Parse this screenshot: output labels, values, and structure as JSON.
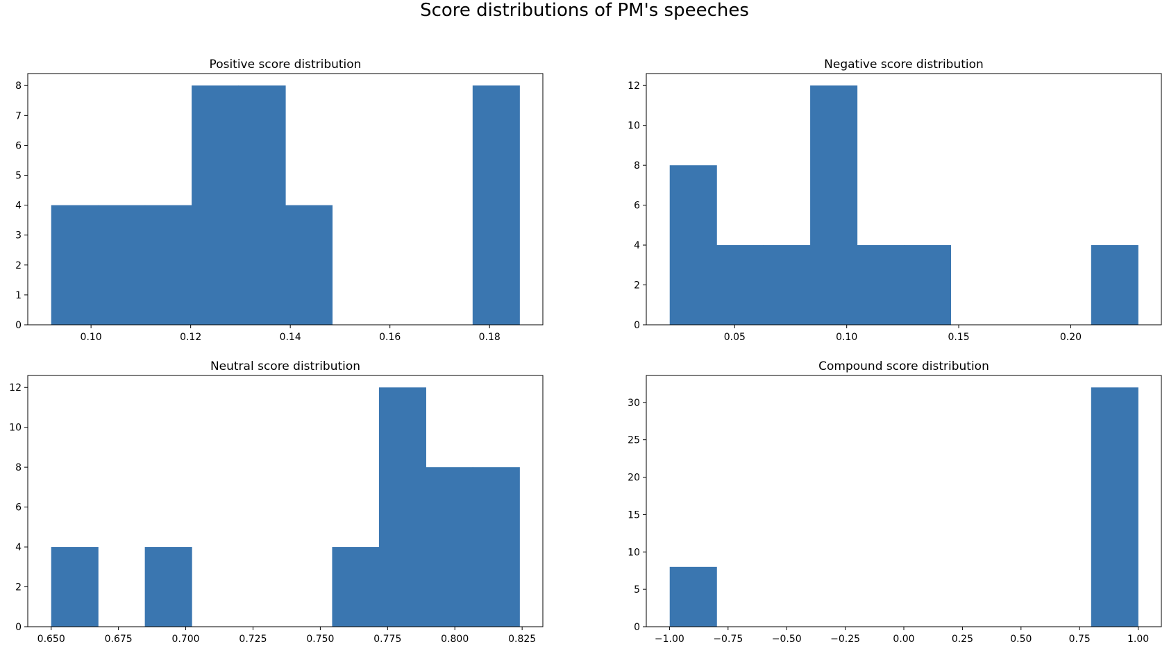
{
  "figure": {
    "suptitle": "Score distributions of PM's speeches"
  },
  "colors": {
    "bar": "#3a76b0",
    "axis": "#000000",
    "background": "#ffffff"
  },
  "chart_data": [
    {
      "type": "bar",
      "title": "Positive score distribution",
      "bins": [
        {
          "x0": 0.092,
          "x1": 0.1014,
          "value": 4
        },
        {
          "x0": 0.1014,
          "x1": 0.1108,
          "value": 4
        },
        {
          "x0": 0.1108,
          "x1": 0.1202,
          "value": 4
        },
        {
          "x0": 0.1202,
          "x1": 0.1296,
          "value": 8
        },
        {
          "x0": 0.1296,
          "x1": 0.139,
          "value": 8
        },
        {
          "x0": 0.139,
          "x1": 0.1484,
          "value": 4
        },
        {
          "x0": 0.1484,
          "x1": 0.1578,
          "value": 0
        },
        {
          "x0": 0.1578,
          "x1": 0.1672,
          "value": 0
        },
        {
          "x0": 0.1672,
          "x1": 0.1766,
          "value": 0
        },
        {
          "x0": 0.1766,
          "x1": 0.186,
          "value": 8
        }
      ],
      "xlim": [
        0.0873,
        0.1907
      ],
      "ylim": [
        0,
        8.4
      ],
      "xticks": [
        0.1,
        0.12,
        0.14,
        0.16,
        0.18
      ],
      "xtick_labels": [
        "0.10",
        "0.12",
        "0.14",
        "0.16",
        "0.18"
      ],
      "yticks": [
        0,
        1,
        2,
        3,
        4,
        5,
        6,
        7,
        8
      ],
      "ytick_labels": [
        "0",
        "1",
        "2",
        "3",
        "4",
        "5",
        "6",
        "7",
        "8"
      ]
    },
    {
      "type": "bar",
      "title": "Negative score distribution",
      "bins": [
        {
          "x0": 0.021,
          "x1": 0.0419,
          "value": 8
        },
        {
          "x0": 0.0419,
          "x1": 0.0628,
          "value": 4
        },
        {
          "x0": 0.0628,
          "x1": 0.0837,
          "value": 4
        },
        {
          "x0": 0.0837,
          "x1": 0.1046,
          "value": 12
        },
        {
          "x0": 0.1046,
          "x1": 0.1255,
          "value": 4
        },
        {
          "x0": 0.1255,
          "x1": 0.1464,
          "value": 4
        },
        {
          "x0": 0.1464,
          "x1": 0.1673,
          "value": 0
        },
        {
          "x0": 0.1673,
          "x1": 0.1882,
          "value": 0
        },
        {
          "x0": 0.1882,
          "x1": 0.2091,
          "value": 0
        },
        {
          "x0": 0.2091,
          "x1": 0.23,
          "value": 4
        }
      ],
      "xlim": [
        0.01055,
        0.24045
      ],
      "ylim": [
        0,
        12.6
      ],
      "xticks": [
        0.05,
        0.1,
        0.15,
        0.2
      ],
      "xtick_labels": [
        "0.05",
        "0.10",
        "0.15",
        "0.20"
      ],
      "yticks": [
        0,
        2,
        4,
        6,
        8,
        10,
        12
      ],
      "ytick_labels": [
        "0",
        "2",
        "4",
        "6",
        "8",
        "10",
        "12"
      ]
    },
    {
      "type": "bar",
      "title": "Neutral score distribution",
      "bins": [
        {
          "x0": 0.65,
          "x1": 0.6674,
          "value": 4
        },
        {
          "x0": 0.6674,
          "x1": 0.6848,
          "value": 0
        },
        {
          "x0": 0.6848,
          "x1": 0.7022,
          "value": 4
        },
        {
          "x0": 0.7022,
          "x1": 0.7196,
          "value": 0
        },
        {
          "x0": 0.7196,
          "x1": 0.737,
          "value": 0
        },
        {
          "x0": 0.737,
          "x1": 0.7544,
          "value": 0
        },
        {
          "x0": 0.7544,
          "x1": 0.7718,
          "value": 4
        },
        {
          "x0": 0.7718,
          "x1": 0.7892,
          "value": 12
        },
        {
          "x0": 0.7892,
          "x1": 0.8066,
          "value": 8
        },
        {
          "x0": 0.8066,
          "x1": 0.824,
          "value": 8
        }
      ],
      "xlim": [
        0.6413,
        0.8327
      ],
      "ylim": [
        0,
        12.6
      ],
      "xticks": [
        0.65,
        0.675,
        0.7,
        0.725,
        0.75,
        0.775,
        0.8,
        0.825
      ],
      "xtick_labels": [
        "0.650",
        "0.675",
        "0.700",
        "0.725",
        "0.750",
        "0.775",
        "0.800",
        "0.825"
      ],
      "yticks": [
        0,
        2,
        4,
        6,
        8,
        10,
        12
      ],
      "ytick_labels": [
        "0",
        "2",
        "4",
        "6",
        "8",
        "10",
        "12"
      ]
    },
    {
      "type": "bar",
      "title": "Compound score distribution",
      "bins": [
        {
          "x0": -0.999,
          "x1": -0.7992,
          "value": 8
        },
        {
          "x0": -0.7992,
          "x1": -0.5994,
          "value": 0
        },
        {
          "x0": -0.5994,
          "x1": -0.3996,
          "value": 0
        },
        {
          "x0": -0.3996,
          "x1": -0.1998,
          "value": 0
        },
        {
          "x0": -0.1998,
          "x1": 0.0,
          "value": 0
        },
        {
          "x0": 0.0,
          "x1": 0.1998,
          "value": 0
        },
        {
          "x0": 0.1998,
          "x1": 0.3996,
          "value": 0
        },
        {
          "x0": 0.3996,
          "x1": 0.5994,
          "value": 0
        },
        {
          "x0": 0.5994,
          "x1": 0.7992,
          "value": 0
        },
        {
          "x0": 0.7992,
          "x1": 0.999,
          "value": 32
        }
      ],
      "xlim": [
        -1.0989,
        1.0989
      ],
      "ylim": [
        0,
        33.6
      ],
      "xticks": [
        -1.0,
        -0.75,
        -0.5,
        -0.25,
        0.0,
        0.25,
        0.5,
        0.75,
        1.0
      ],
      "xtick_labels": [
        "−1.00",
        "−0.75",
        "−0.50",
        "−0.25",
        "0.00",
        "0.25",
        "0.50",
        "0.75",
        "1.00"
      ],
      "yticks": [
        0,
        5,
        10,
        15,
        20,
        25,
        30
      ],
      "ytick_labels": [
        "0",
        "5",
        "10",
        "15",
        "20",
        "25",
        "30"
      ]
    }
  ]
}
